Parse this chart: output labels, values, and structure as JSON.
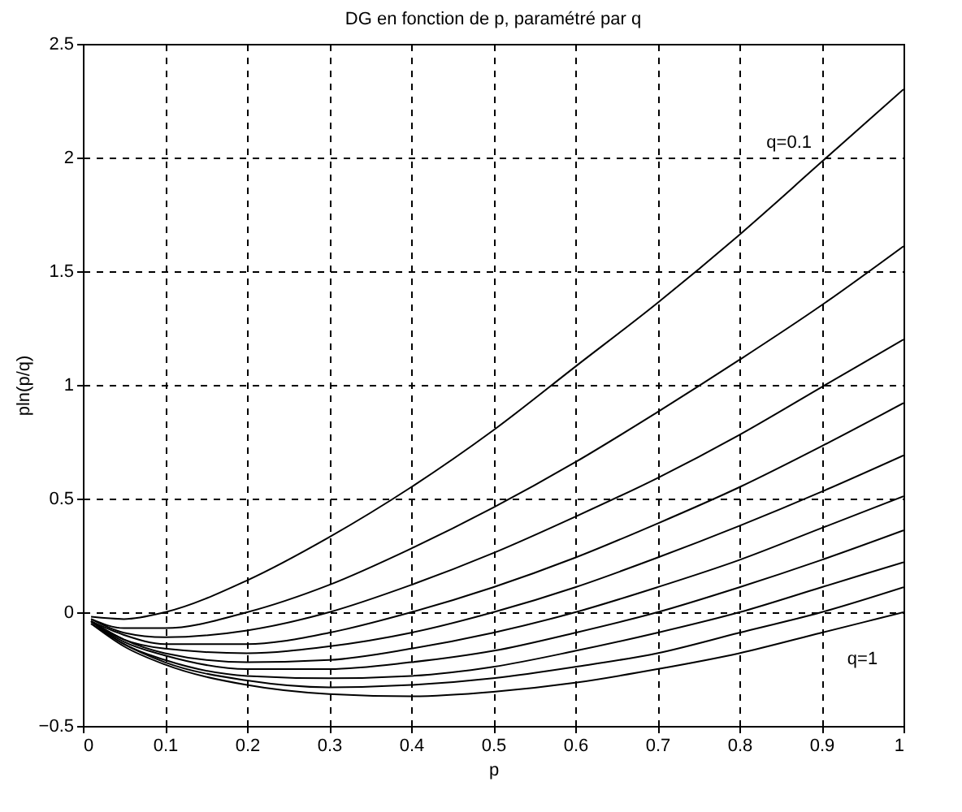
{
  "chart_data": {
    "type": "line",
    "title": "DG en fonction de p, paramétré par q",
    "xlabel": "p",
    "ylabel": "pln(p/q)",
    "x": [
      0.01,
      0.05,
      0.1,
      0.2,
      0.3,
      0.4,
      0.5,
      0.6,
      0.7,
      0.8,
      0.9,
      1
    ],
    "series": [
      {
        "color": "#000000",
        "values": [
          -0.02,
          -0.03,
          0,
          0.14,
          0.33,
          0.55,
          0.8,
          1.08,
          1.36,
          1.66,
          1.98,
          2.3
        ]
      },
      {
        "color": "#000000",
        "values": [
          -0.03,
          -0.07,
          -0.07,
          0,
          0.12,
          0.28,
          0.46,
          0.66,
          0.88,
          1.11,
          1.35,
          1.61
        ]
      },
      {
        "color": "#000000",
        "values": [
          -0.03,
          -0.09,
          -0.11,
          -0.08,
          0,
          0.12,
          0.26,
          0.42,
          0.59,
          0.78,
          0.99,
          1.2
        ]
      },
      {
        "color": "#000000",
        "values": [
          -0.04,
          -0.1,
          -0.14,
          -0.14,
          -0.09,
          0,
          0.11,
          0.24,
          0.39,
          0.55,
          0.73,
          0.92
        ]
      },
      {
        "color": "#000000",
        "values": [
          -0.04,
          -0.12,
          -0.16,
          -0.18,
          -0.15,
          -0.09,
          0,
          0.11,
          0.24,
          0.38,
          0.53,
          0.69
        ]
      },
      {
        "color": "#000000",
        "values": [
          -0.04,
          -0.12,
          -0.18,
          -0.22,
          -0.21,
          -0.16,
          -0.09,
          0,
          0.11,
          0.23,
          0.37,
          0.51
        ]
      },
      {
        "color": "#000000",
        "values": [
          -0.04,
          -0.13,
          -0.19,
          -0.25,
          -0.25,
          -0.22,
          -0.17,
          -0.09,
          0,
          0.11,
          0.23,
          0.36
        ]
      },
      {
        "color": "#000000",
        "values": [
          -0.04,
          -0.14,
          -0.21,
          -0.28,
          -0.29,
          -0.28,
          -0.24,
          -0.17,
          -0.09,
          0,
          0.11,
          0.22
        ]
      },
      {
        "color": "#000000",
        "values": [
          -0.05,
          -0.14,
          -0.22,
          -0.3,
          -0.33,
          -0.32,
          -0.29,
          -0.24,
          -0.18,
          -0.09,
          0,
          0.11
        ]
      },
      {
        "color": "#000000",
        "values": [
          -0.05,
          -0.15,
          -0.23,
          -0.32,
          -0.36,
          -0.37,
          -0.35,
          -0.31,
          -0.25,
          -0.18,
          -0.09,
          0
        ]
      }
    ],
    "annotations": [
      {
        "text": "q=0.1",
        "x": 0.9,
        "y": 1.98
      },
      {
        "text": "q=1",
        "x": 0.95,
        "y": -0.05
      }
    ],
    "xlim": [
      0,
      1
    ],
    "xticks": [
      0,
      0.1,
      0.2,
      0.3,
      0.4,
      0.5,
      0.6,
      0.7,
      0.8,
      0.9,
      1
    ],
    "ylim": [
      -0.5,
      2.5
    ],
    "yticks": [
      -0.5,
      0,
      0.5,
      1,
      1.5,
      2,
      2.5
    ],
    "grid": true
  }
}
